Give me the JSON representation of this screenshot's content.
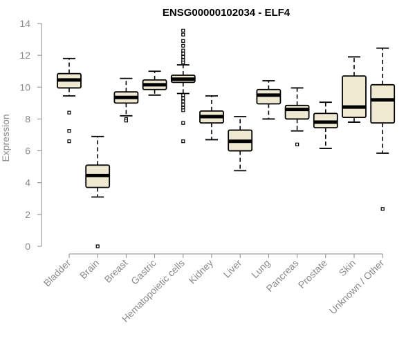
{
  "chart_data": {
    "type": "boxplot",
    "title": "ENSG00000102034 - ELF4",
    "xlabel": "",
    "ylabel": "Expression",
    "ylim": [
      0,
      14
    ],
    "yticks": [
      0,
      2,
      4,
      6,
      8,
      10,
      12,
      14
    ],
    "grid": false,
    "box_fill": "#efe9d2",
    "box_stroke": "#000000",
    "axis_color": "#8a8a8a",
    "categories": [
      "Bladder",
      "Brain",
      "Breast",
      "Gastric",
      "Hematopoietic cells",
      "Kidney",
      "Liver",
      "Lung",
      "Pancreas",
      "Prostate",
      "Skin",
      "Unknown / Other"
    ],
    "boxes": [
      {
        "category": "Bladder",
        "whisker_low": 9.45,
        "q1": 9.95,
        "median": 10.45,
        "q3": 10.85,
        "whisker_high": 11.8,
        "outliers": [
          8.4,
          7.25,
          6.6
        ]
      },
      {
        "category": "Brain",
        "whisker_low": 3.1,
        "q1": 3.7,
        "median": 4.45,
        "q3": 5.1,
        "whisker_high": 6.9,
        "outliers": [
          0.0
        ]
      },
      {
        "category": "Breast",
        "whisker_low": 8.2,
        "q1": 9.0,
        "median": 9.35,
        "q3": 9.7,
        "whisker_high": 10.55,
        "outliers": [
          8.0,
          7.9
        ]
      },
      {
        "category": "Gastric",
        "whisker_low": 9.5,
        "q1": 9.85,
        "median": 10.15,
        "q3": 10.45,
        "whisker_high": 11.0,
        "outliers": []
      },
      {
        "category": "Hematopoietic cells",
        "whisker_low": 9.6,
        "q1": 10.3,
        "median": 10.5,
        "q3": 10.75,
        "whisker_high": 11.4,
        "outliers": [
          13.55,
          13.3,
          12.9,
          12.6,
          12.3,
          12.1,
          11.9,
          11.7,
          11.55,
          9.5,
          9.3,
          9.1,
          8.9,
          8.7,
          8.55,
          7.75,
          6.6
        ]
      },
      {
        "category": "Kidney",
        "whisker_low": 6.7,
        "q1": 7.75,
        "median": 8.15,
        "q3": 8.5,
        "whisker_high": 9.45,
        "outliers": []
      },
      {
        "category": "Liver",
        "whisker_low": 4.75,
        "q1": 6.0,
        "median": 6.6,
        "q3": 7.3,
        "whisker_high": 8.15,
        "outliers": []
      },
      {
        "category": "Lung",
        "whisker_low": 8.0,
        "q1": 8.95,
        "median": 9.5,
        "q3": 9.85,
        "whisker_high": 10.4,
        "outliers": []
      },
      {
        "category": "Pancreas",
        "whisker_low": 7.25,
        "q1": 8.0,
        "median": 8.6,
        "q3": 8.85,
        "whisker_high": 9.95,
        "outliers": [
          6.4
        ]
      },
      {
        "category": "Prostate",
        "whisker_low": 6.15,
        "q1": 7.45,
        "median": 7.8,
        "q3": 8.35,
        "whisker_high": 9.05,
        "outliers": []
      },
      {
        "category": "Skin",
        "whisker_low": 7.8,
        "q1": 8.1,
        "median": 8.75,
        "q3": 10.7,
        "whisker_high": 11.9,
        "outliers": []
      },
      {
        "category": "Unknown / Other",
        "whisker_low": 5.85,
        "q1": 7.75,
        "median": 9.2,
        "q3": 10.15,
        "whisker_high": 12.45,
        "outliers": [
          2.35
        ]
      }
    ]
  }
}
